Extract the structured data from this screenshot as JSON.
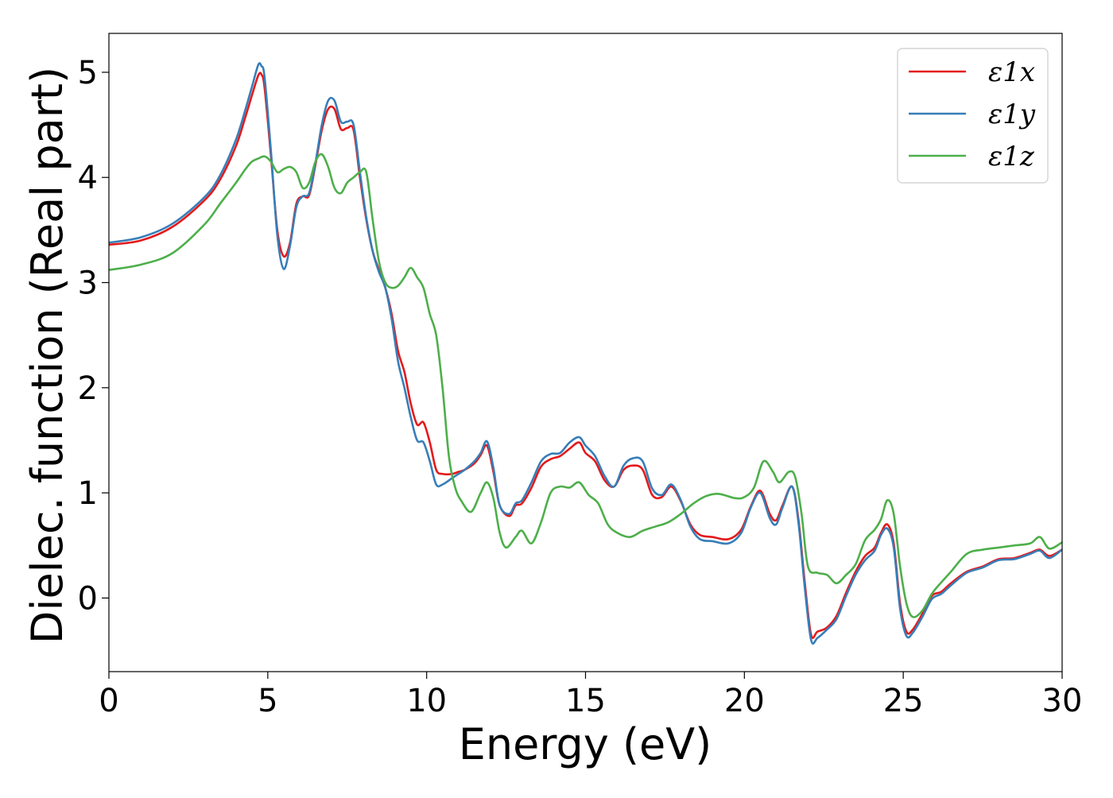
{
  "chart_data": {
    "type": "line",
    "title": "",
    "xlabel": "Energy (eV)",
    "ylabel": "Dielec. function (Real part)",
    "xlim": [
      0,
      30
    ],
    "ylim": [
      -0.7,
      5.37
    ],
    "xticks": [
      0,
      5,
      10,
      15,
      20,
      25,
      30
    ],
    "xtick_labels": [
      "0",
      "5",
      "10",
      "15",
      "20",
      "25",
      "30"
    ],
    "yticks": [
      0,
      1,
      2,
      3,
      4,
      5
    ],
    "ytick_labels": [
      "0",
      "1",
      "2",
      "3",
      "4",
      "5"
    ],
    "grid": false,
    "legend_position": "top-right",
    "series": [
      {
        "name": "ε1x",
        "color": "#e41a1c",
        "x": [
          0,
          1,
          2,
          3,
          3.5,
          4,
          4.3,
          4.5,
          4.7,
          4.8,
          4.9,
          5.1,
          5.3,
          5.5,
          5.7,
          5.9,
          6.1,
          6.3,
          6.5,
          6.7,
          6.9,
          7.1,
          7.3,
          7.5,
          7.7,
          7.9,
          8.1,
          8.3,
          8.5,
          8.7,
          8.9,
          9.1,
          9.3,
          9.5,
          9.7,
          9.9,
          10.1,
          10.3,
          10.5,
          10.8,
          11.0,
          11.2,
          11.5,
          11.7,
          11.9,
          12.1,
          12.3,
          12.6,
          12.8,
          13.0,
          13.3,
          13.6,
          13.9,
          14.2,
          14.5,
          14.8,
          15.0,
          15.3,
          15.6,
          15.9,
          16.2,
          16.5,
          16.8,
          17.1,
          17.4,
          17.7,
          18.0,
          18.3,
          18.6,
          19.0,
          19.5,
          19.9,
          20.2,
          20.5,
          20.8,
          21.0,
          21.2,
          21.5,
          21.7,
          21.9,
          22.1,
          22.3,
          22.6,
          22.9,
          23.2,
          23.5,
          23.8,
          24.1,
          24.3,
          24.5,
          24.7,
          24.9,
          25.1,
          25.3,
          25.6,
          25.9,
          26.2,
          26.5,
          27.0,
          27.5,
          28.0,
          28.5,
          29.0,
          29.3,
          29.6,
          30
        ],
        "y": [
          3.36,
          3.4,
          3.53,
          3.78,
          3.98,
          4.3,
          4.58,
          4.78,
          4.97,
          4.98,
          4.85,
          4.2,
          3.5,
          3.25,
          3.38,
          3.75,
          3.82,
          3.83,
          4.12,
          4.45,
          4.65,
          4.65,
          4.46,
          4.47,
          4.45,
          4.0,
          3.6,
          3.3,
          3.12,
          2.95,
          2.7,
          2.35,
          2.15,
          1.85,
          1.65,
          1.67,
          1.48,
          1.22,
          1.18,
          1.18,
          1.2,
          1.22,
          1.28,
          1.36,
          1.45,
          1.2,
          0.88,
          0.78,
          0.88,
          0.9,
          1.05,
          1.25,
          1.32,
          1.35,
          1.42,
          1.48,
          1.38,
          1.3,
          1.12,
          1.06,
          1.22,
          1.26,
          1.22,
          0.98,
          0.96,
          1.06,
          0.92,
          0.7,
          0.6,
          0.58,
          0.56,
          0.65,
          0.87,
          1.02,
          0.8,
          0.74,
          0.88,
          1.06,
          0.75,
          0.15,
          -0.35,
          -0.32,
          -0.28,
          -0.17,
          0.05,
          0.25,
          0.4,
          0.48,
          0.62,
          0.7,
          0.52,
          -0.05,
          -0.32,
          -0.3,
          -0.15,
          0.02,
          0.06,
          0.14,
          0.25,
          0.3,
          0.37,
          0.38,
          0.43,
          0.46,
          0.4,
          0.46
        ]
      },
      {
        "name": "ε1y",
        "color": "#377eb8",
        "x": [
          0,
          1,
          2,
          3,
          3.5,
          4,
          4.3,
          4.5,
          4.7,
          4.8,
          4.9,
          5.1,
          5.3,
          5.5,
          5.7,
          5.9,
          6.1,
          6.3,
          6.5,
          6.7,
          6.9,
          7.1,
          7.3,
          7.5,
          7.7,
          7.9,
          8.1,
          8.3,
          8.5,
          8.7,
          8.9,
          9.1,
          9.3,
          9.5,
          9.7,
          9.9,
          10.1,
          10.3,
          10.5,
          10.8,
          11.0,
          11.2,
          11.5,
          11.7,
          11.9,
          12.1,
          12.3,
          12.6,
          12.8,
          13.0,
          13.3,
          13.6,
          13.9,
          14.2,
          14.5,
          14.8,
          15.0,
          15.3,
          15.6,
          15.9,
          16.2,
          16.5,
          16.8,
          17.1,
          17.4,
          17.7,
          18.0,
          18.3,
          18.6,
          19.0,
          19.5,
          19.9,
          20.2,
          20.5,
          20.8,
          21.0,
          21.2,
          21.5,
          21.7,
          21.9,
          22.1,
          22.3,
          22.6,
          22.9,
          23.2,
          23.5,
          23.8,
          24.1,
          24.3,
          24.5,
          24.7,
          24.9,
          25.1,
          25.3,
          25.6,
          25.9,
          26.2,
          26.5,
          27.0,
          27.5,
          28.0,
          28.5,
          29.0,
          29.3,
          29.6,
          30
        ],
        "y": [
          3.38,
          3.43,
          3.56,
          3.81,
          4.02,
          4.36,
          4.65,
          4.86,
          5.07,
          5.06,
          4.95,
          4.25,
          3.45,
          3.13,
          3.35,
          3.72,
          3.82,
          3.85,
          4.14,
          4.5,
          4.73,
          4.73,
          4.53,
          4.53,
          4.5,
          4.05,
          3.62,
          3.3,
          3.1,
          2.95,
          2.65,
          2.25,
          2.0,
          1.72,
          1.5,
          1.48,
          1.3,
          1.08,
          1.08,
          1.14,
          1.18,
          1.22,
          1.3,
          1.38,
          1.49,
          1.24,
          0.88,
          0.8,
          0.9,
          0.93,
          1.1,
          1.3,
          1.37,
          1.38,
          1.48,
          1.53,
          1.45,
          1.35,
          1.16,
          1.06,
          1.26,
          1.33,
          1.3,
          1.04,
          0.98,
          1.08,
          0.93,
          0.68,
          0.56,
          0.54,
          0.52,
          0.62,
          0.86,
          1.0,
          0.76,
          0.7,
          0.86,
          1.06,
          0.72,
          0.1,
          -0.4,
          -0.38,
          -0.3,
          -0.2,
          0.02,
          0.22,
          0.36,
          0.45,
          0.6,
          0.66,
          0.48,
          -0.1,
          -0.36,
          -0.33,
          -0.18,
          -0.01,
          0.04,
          0.12,
          0.24,
          0.29,
          0.36,
          0.37,
          0.42,
          0.45,
          0.38,
          0.46
        ]
      },
      {
        "name": "ε1z",
        "color": "#4daf4a",
        "x": [
          0,
          1,
          2,
          3,
          3.5,
          4,
          4.3,
          4.5,
          4.7,
          4.9,
          5.1,
          5.3,
          5.5,
          5.7,
          5.9,
          6.1,
          6.3,
          6.5,
          6.7,
          6.9,
          7.1,
          7.3,
          7.5,
          7.7,
          7.9,
          8.1,
          8.3,
          8.5,
          8.7,
          8.9,
          9.1,
          9.3,
          9.5,
          9.7,
          9.9,
          10.1,
          10.3,
          10.5,
          10.7,
          10.9,
          11.1,
          11.4,
          11.7,
          11.9,
          12.1,
          12.3,
          12.5,
          12.8,
          13.0,
          13.3,
          13.6,
          13.9,
          14.2,
          14.5,
          14.8,
          15.1,
          15.4,
          15.7,
          16.0,
          16.4,
          16.8,
          17.2,
          17.6,
          18.0,
          18.4,
          18.8,
          19.2,
          19.7,
          20.0,
          20.3,
          20.6,
          20.9,
          21.1,
          21.4,
          21.6,
          21.8,
          22.0,
          22.3,
          22.6,
          22.9,
          23.2,
          23.5,
          23.8,
          24.1,
          24.3,
          24.5,
          24.7,
          24.9,
          25.1,
          25.3,
          25.6,
          25.9,
          26.2,
          26.5,
          27.0,
          27.5,
          28.0,
          28.5,
          29.0,
          29.3,
          29.6,
          30
        ],
        "y": [
          3.12,
          3.17,
          3.28,
          3.55,
          3.75,
          3.95,
          4.08,
          4.15,
          4.18,
          4.2,
          4.15,
          4.05,
          4.08,
          4.1,
          4.05,
          3.9,
          3.95,
          4.15,
          4.22,
          4.1,
          3.9,
          3.85,
          3.95,
          4.0,
          4.05,
          4.05,
          3.6,
          3.2,
          3.0,
          2.95,
          2.97,
          3.05,
          3.14,
          3.05,
          2.95,
          2.7,
          2.5,
          2.0,
          1.35,
          1.05,
          0.92,
          0.82,
          1.0,
          1.1,
          0.95,
          0.62,
          0.48,
          0.58,
          0.64,
          0.52,
          0.72,
          1.0,
          1.06,
          1.05,
          1.1,
          0.98,
          0.9,
          0.7,
          0.62,
          0.58,
          0.64,
          0.68,
          0.72,
          0.8,
          0.9,
          0.97,
          0.99,
          0.95,
          0.96,
          1.05,
          1.3,
          1.2,
          1.1,
          1.2,
          1.15,
          0.8,
          0.3,
          0.24,
          0.22,
          0.14,
          0.22,
          0.32,
          0.55,
          0.65,
          0.75,
          0.93,
          0.8,
          0.3,
          -0.05,
          -0.18,
          -0.12,
          0.04,
          0.15,
          0.25,
          0.42,
          0.46,
          0.48,
          0.5,
          0.52,
          0.58,
          0.47,
          0.53
        ]
      }
    ]
  }
}
